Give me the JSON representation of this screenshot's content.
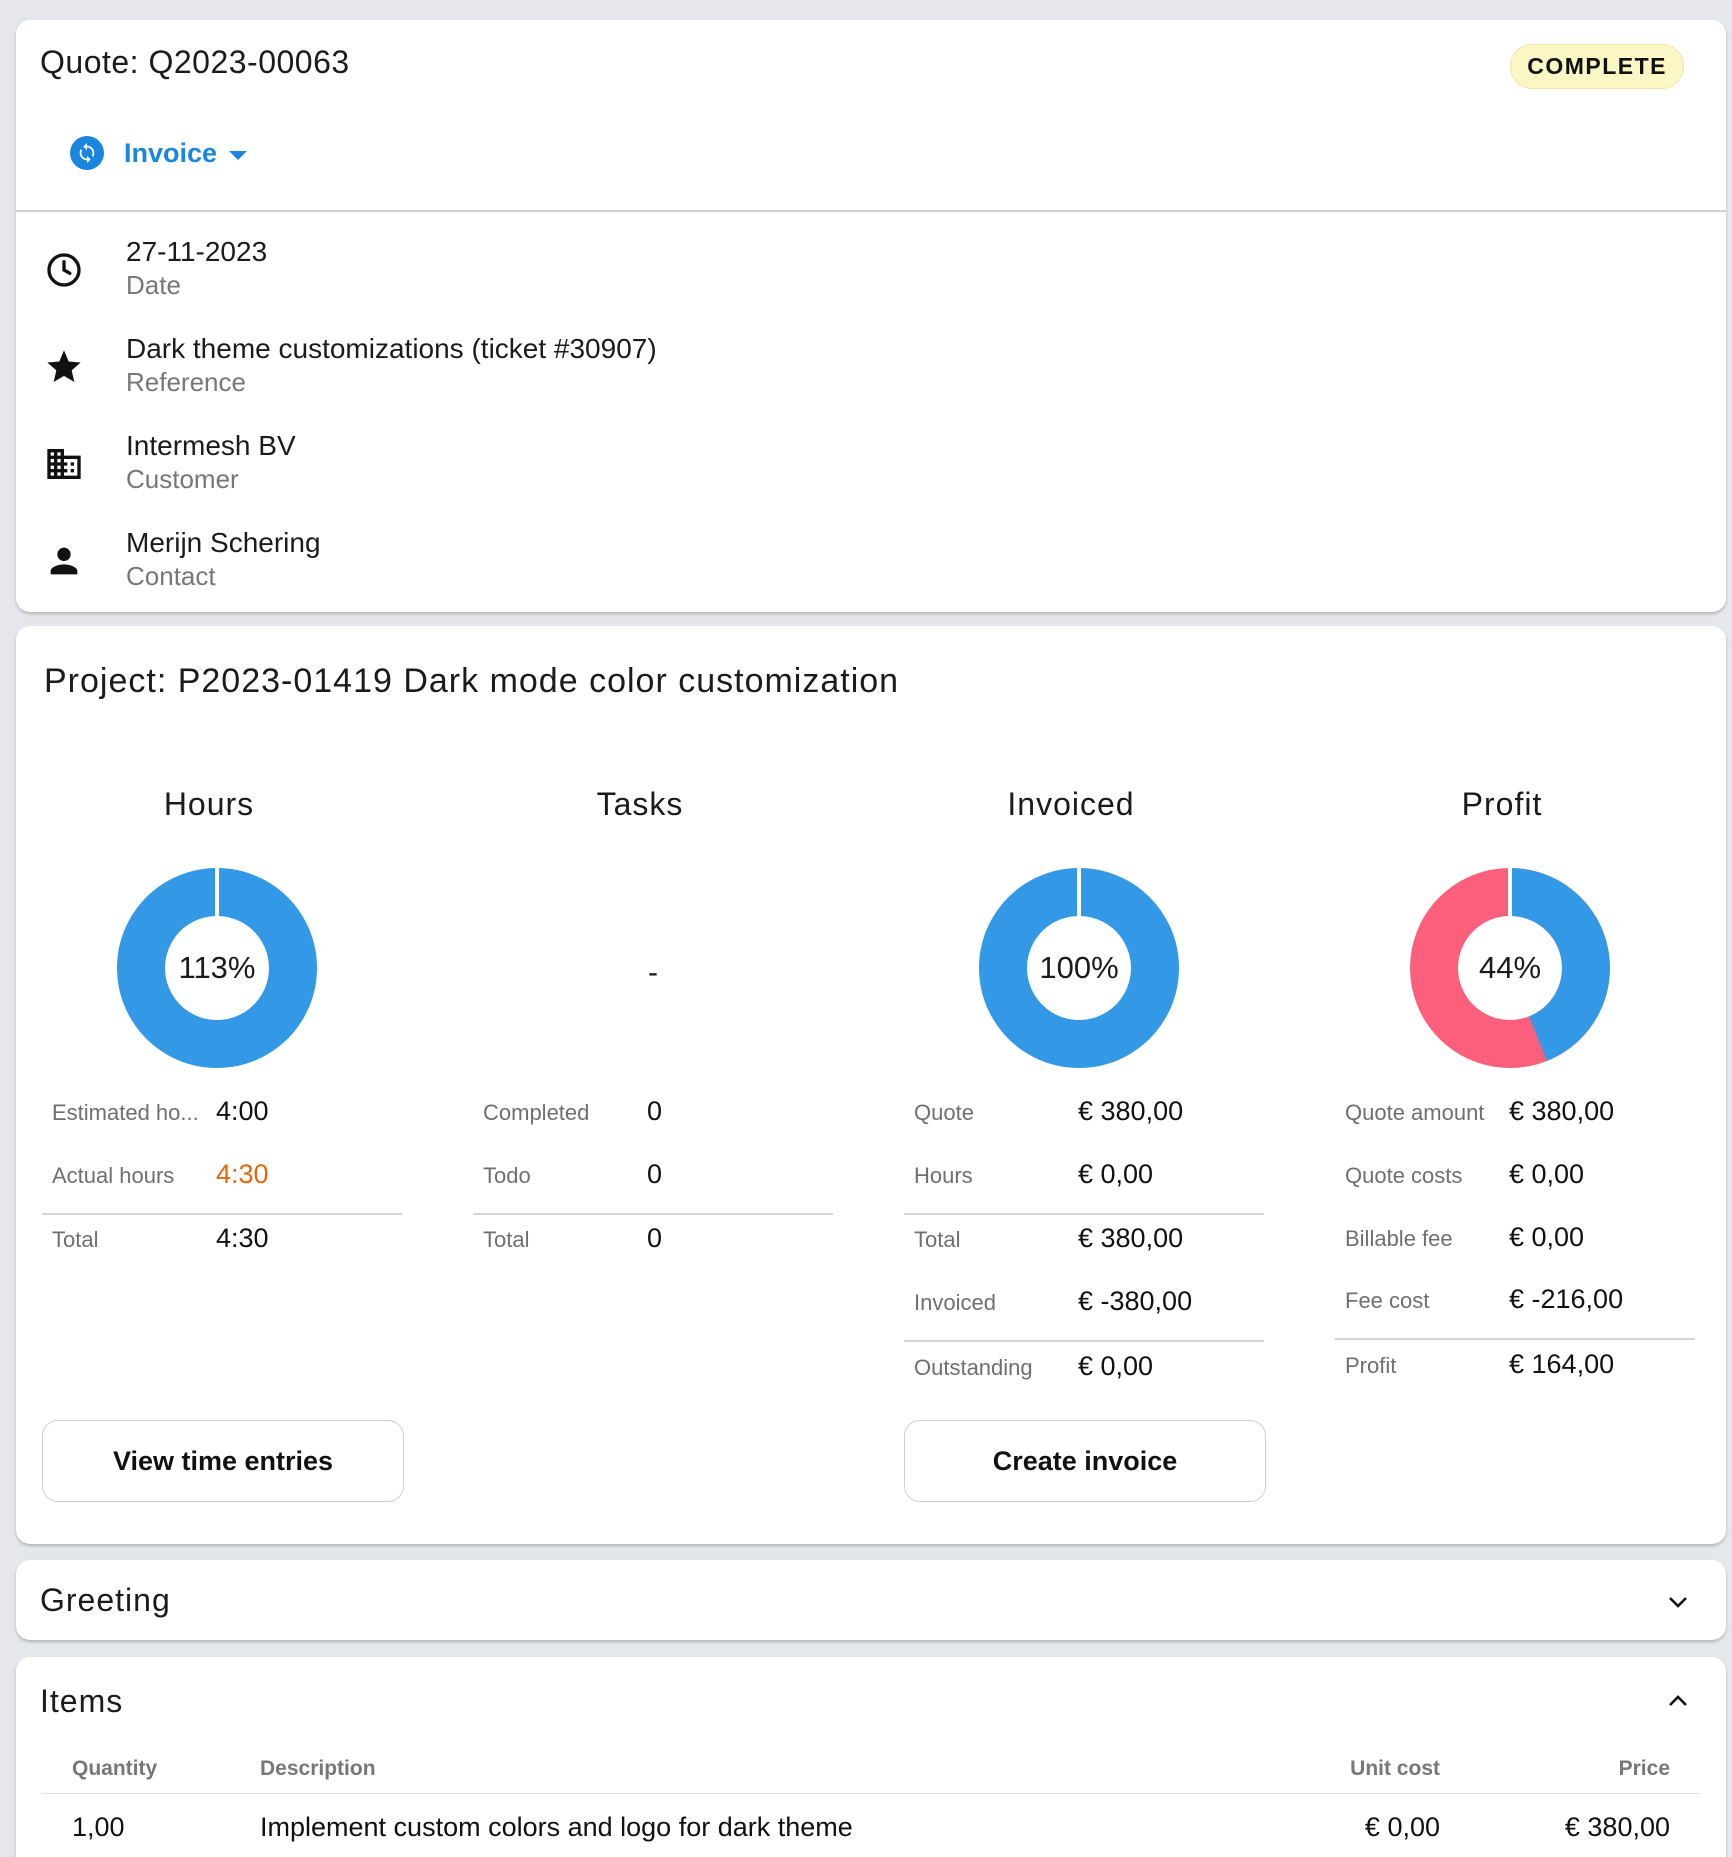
{
  "quote": {
    "title": "Quote: Q2023-00063",
    "status": "COMPLETE",
    "action_menu_label": "Invoice",
    "fields": [
      {
        "value": "27-11-2023",
        "label": "Date",
        "icon": "clock-icon"
      },
      {
        "value": "Dark theme customizations (ticket #30907)",
        "label": "Reference",
        "icon": "star-icon"
      },
      {
        "value": "Intermesh BV",
        "label": "Customer",
        "icon": "building-icon"
      },
      {
        "value": "Merijn Schering",
        "label": "Contact",
        "icon": "person-icon"
      }
    ]
  },
  "project": {
    "title": "Project: P2023-01419 Dark mode color customization",
    "hours": {
      "heading": "Hours",
      "percent_label": "113%",
      "percent": 113,
      "rows": [
        {
          "label": "Estimated ho...",
          "value": "4:00"
        },
        {
          "label": "Actual hours",
          "value": "4:30"
        },
        {
          "label": "Total",
          "value": "4:30"
        }
      ],
      "button": "View time entries"
    },
    "tasks": {
      "heading": "Tasks",
      "placeholder": "-",
      "rows": [
        {
          "label": "Completed",
          "value": "0"
        },
        {
          "label": "Todo",
          "value": "0"
        },
        {
          "label": "Total",
          "value": "0"
        }
      ]
    },
    "invoiced": {
      "heading": "Invoiced",
      "percent_label": "100%",
      "percent": 100,
      "rows": [
        {
          "label": "Quote",
          "value": "€ 380,00"
        },
        {
          "label": "Hours",
          "value": "€ 0,00"
        },
        {
          "label": "Total",
          "value": "€ 380,00"
        },
        {
          "label": "Invoiced",
          "value": "€ -380,00"
        },
        {
          "label": "Outstanding",
          "value": "€ 0,00"
        }
      ],
      "button": "Create invoice"
    },
    "profit": {
      "heading": "Profit",
      "percent_label": "44%",
      "percent": 44,
      "rows": [
        {
          "label": "Quote amount",
          "value": "€ 380,00"
        },
        {
          "label": "Quote costs",
          "value": "€ 0,00"
        },
        {
          "label": "Billable fee",
          "value": "€ 0,00"
        },
        {
          "label": "Fee cost",
          "value": "€ -216,00"
        },
        {
          "label": "Profit",
          "value": "€ 164,00"
        }
      ]
    }
  },
  "greeting": {
    "title": "Greeting"
  },
  "items": {
    "title": "Items",
    "columns": [
      "Quantity",
      "Description",
      "Unit cost",
      "Price"
    ],
    "rows": [
      {
        "quantity": "1,00",
        "description": "Implement custom colors and logo for dark theme",
        "unit_cost": "€ 0,00",
        "price": "€ 380,00"
      }
    ]
  },
  "colors": {
    "accent": "#1a86e0",
    "donut_blue": "#3399e6",
    "donut_red": "#fc5f7b",
    "warning_orange": "#e8670a",
    "badge_bg": "#fbf7c4"
  }
}
